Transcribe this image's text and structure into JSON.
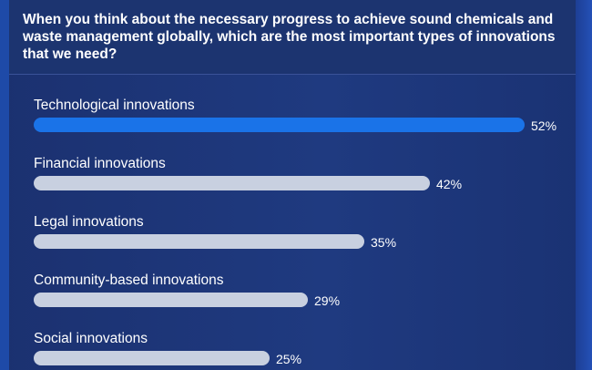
{
  "poll": {
    "question": "When you think about the necessary progress to achieve sound chemicals and waste management globally, which are the most important types of innovations that we need?",
    "accent_color": "#1a73e8",
    "bar_color": "#c8d0e0",
    "background_color": "#1b3372",
    "options": [
      {
        "label": "Technological innovations",
        "percent_label": "52%",
        "value": 52,
        "highlighted": true
      },
      {
        "label": "Financial innovations",
        "percent_label": "42%",
        "value": 42,
        "highlighted": false
      },
      {
        "label": "Legal innovations",
        "percent_label": "35%",
        "value": 35,
        "highlighted": false
      },
      {
        "label": "Community-based innovations",
        "percent_label": "29%",
        "value": 29,
        "highlighted": false
      },
      {
        "label": "Social innovations",
        "percent_label": "25%",
        "value": 25,
        "highlighted": false
      }
    ]
  }
}
